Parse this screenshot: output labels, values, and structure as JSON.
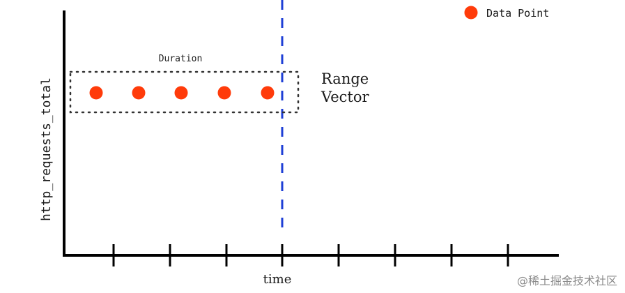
{
  "diagram": {
    "y_axis_label": "http_requests_total",
    "x_axis_label": "time",
    "duration_label": "Duration",
    "range_vector_label_line1": "Range",
    "range_vector_label_line2": "Vector",
    "legend_label": "Data Point",
    "watermark": "@稀土掘金技术社区",
    "colors": {
      "data_point": "#FF3B0A",
      "instant_line": "#1E3FD6",
      "axis": "#000000",
      "range_box": "#333333"
    },
    "data_point_count": 5,
    "x_tick_count": 8
  }
}
